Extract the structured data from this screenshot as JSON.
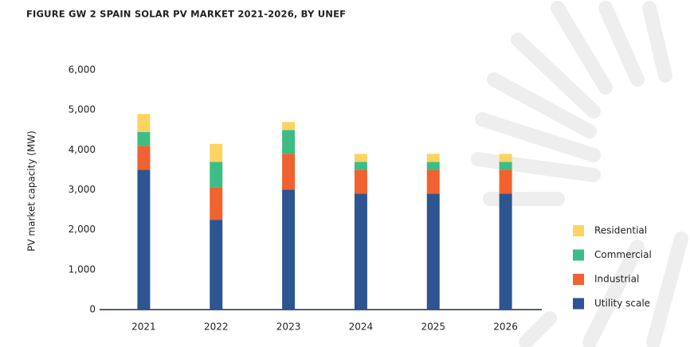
{
  "chart_data": {
    "type": "stacked_bar",
    "title": "FIGURE GW 2 SPAIN SOLAR PV MARKET 2021-2026, BY UNEF",
    "y_label": "PV market capacity (MW)",
    "categories": [
      "2021",
      "2022",
      "2023",
      "2024",
      "2025",
      "2026"
    ],
    "series": [
      {
        "name": "Utility scale",
        "color": "#2d5592",
        "values": [
          3500,
          2250,
          3000,
          2900,
          2900,
          2900
        ]
      },
      {
        "name": "Industrial",
        "color": "#f0622f",
        "values": [
          600,
          800,
          900,
          600,
          600,
          600
        ]
      },
      {
        "name": "Commercial",
        "color": "#3dbd85",
        "values": [
          350,
          650,
          600,
          200,
          200,
          200
        ]
      },
      {
        "name": "Residential",
        "color": "#fdd462",
        "values": [
          450,
          450,
          200,
          200,
          200,
          200
        ]
      }
    ],
    "ylim": [
      0,
      6000
    ],
    "yticks": [
      0,
      {
        "value": 1000,
        "label": "1,000"
      },
      {
        "value": 2000,
        "label": "2,000"
      },
      {
        "value": 3000,
        "label": "3,000"
      },
      {
        "value": 4000,
        "label": "4,000"
      },
      {
        "value": 5000,
        "label": "5,000"
      },
      {
        "value": 6000,
        "label": "6,000"
      }
    ],
    "grid": false,
    "legend": "right"
  }
}
